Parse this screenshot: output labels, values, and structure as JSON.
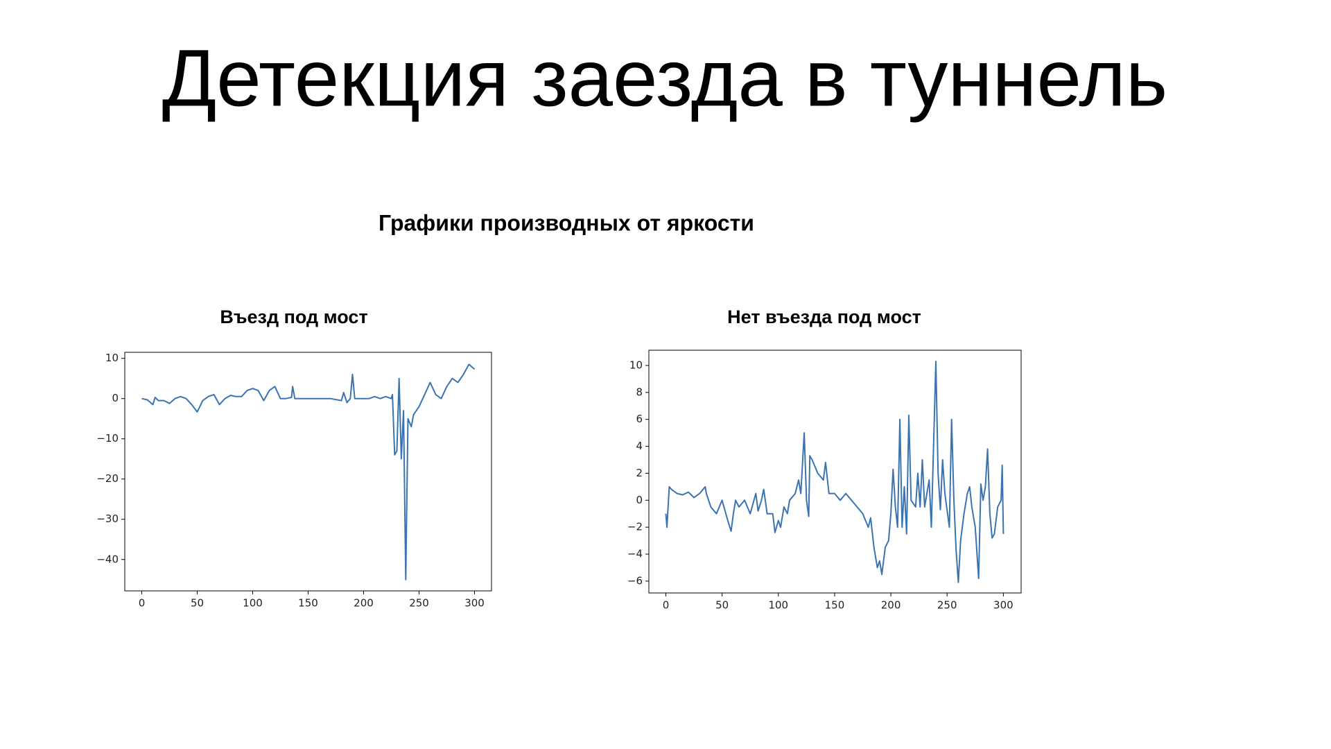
{
  "title": "Детекция заезда в туннель",
  "subtitle": "Графики производных от яркости",
  "chart_data": [
    {
      "type": "line",
      "title": "Въезд под мост",
      "color": "#3b73b0",
      "x": [
        0,
        5,
        10,
        12,
        15,
        20,
        25,
        30,
        35,
        40,
        45,
        50,
        55,
        60,
        65,
        70,
        75,
        80,
        85,
        90,
        95,
        100,
        105,
        110,
        115,
        120,
        125,
        130,
        135,
        136,
        138,
        140,
        150,
        160,
        170,
        180,
        182,
        185,
        188,
        190,
        192,
        200,
        205,
        210,
        215,
        220,
        225,
        226,
        228,
        230,
        232,
        234,
        236,
        238,
        240,
        243,
        245,
        250,
        255,
        260,
        265,
        270,
        275,
        280,
        285,
        290,
        295,
        300
      ],
      "values": [
        0,
        -0.3,
        -1.5,
        0.3,
        -0.5,
        -0.5,
        -1.2,
        0,
        0.5,
        0,
        -1.5,
        -3.3,
        -0.5,
        0.5,
        1,
        -1.5,
        0,
        0.8,
        0.5,
        0.5,
        2,
        2.5,
        2,
        -0.5,
        2,
        3,
        0,
        0,
        0.3,
        3,
        0,
        0,
        0,
        0,
        0,
        -0.5,
        1.5,
        -1,
        0,
        6,
        0,
        0,
        0,
        0.5,
        0,
        0.5,
        0,
        1,
        -14,
        -13,
        5,
        -15,
        -3,
        -45,
        -5,
        -7,
        -4,
        -2,
        1,
        4,
        1,
        0,
        3,
        5,
        4,
        6,
        8.5,
        7.3
      ],
      "xlim": [
        -15.3,
        315.3
      ],
      "ylim": [
        -47.8,
        11.5
      ],
      "xticks": [
        0,
        50,
        100,
        150,
        200,
        250,
        300
      ],
      "yticks": [
        10,
        0,
        {
          "value": -10,
          "label": "−10"
        },
        {
          "value": -20,
          "label": "−20"
        },
        {
          "value": -30,
          "label": "−30"
        },
        {
          "value": -40,
          "label": "−40"
        }
      ]
    },
    {
      "type": "line",
      "title": "Нет въезда под мост",
      "color": "#3b73b0",
      "x": [
        0,
        1,
        3,
        5,
        10,
        15,
        20,
        25,
        30,
        35,
        36,
        40,
        45,
        50,
        55,
        58,
        60,
        62,
        65,
        70,
        75,
        80,
        82,
        85,
        87,
        90,
        95,
        97,
        100,
        102,
        105,
        108,
        110,
        115,
        118,
        120,
        123,
        125,
        127,
        128,
        130,
        135,
        140,
        142,
        145,
        150,
        155,
        160,
        165,
        170,
        175,
        180,
        182,
        185,
        188,
        190,
        192,
        195,
        198,
        200,
        202,
        204,
        206,
        208,
        210,
        212,
        214,
        216,
        218,
        222,
        224,
        226,
        228,
        230,
        234,
        236,
        240,
        242,
        244,
        246,
        248,
        252,
        254,
        256,
        258,
        260,
        262,
        265,
        268,
        270,
        272,
        275,
        278,
        280,
        282,
        284,
        286,
        288,
        290,
        292,
        295,
        298,
        299,
        300
      ],
      "values": [
        -1,
        -2,
        1,
        0.8,
        0.5,
        0.4,
        0.6,
        0.2,
        0.5,
        1,
        0.5,
        -0.5,
        -1,
        0,
        -1.5,
        -2.3,
        -1,
        0,
        -0.5,
        0,
        -1,
        0.5,
        -0.8,
        0,
        0.8,
        -1,
        -1,
        -2.4,
        -1.5,
        -2,
        -0.5,
        -1,
        0,
        0.5,
        1.5,
        0.5,
        5,
        0,
        -1.2,
        3.3,
        3,
        2,
        1.5,
        2.8,
        0.5,
        0.5,
        0,
        0.5,
        0,
        -0.5,
        -1,
        -2,
        -1.3,
        -3.5,
        -5,
        -4.5,
        -5.5,
        -3.5,
        -3,
        -1,
        2.3,
        -0.5,
        -2,
        6,
        -2,
        1,
        -2.5,
        6.3,
        0,
        -0.5,
        2,
        -0.5,
        3,
        -0.5,
        1.5,
        -2,
        10.3,
        2,
        -0.7,
        3,
        0.5,
        -2,
        6,
        0,
        -3.7,
        -6.1,
        -3,
        -1,
        0.5,
        1,
        -0.5,
        -2,
        -5.8,
        1.2,
        0,
        1,
        3.8,
        -1,
        -2.8,
        -2.5,
        -0.5,
        0,
        2.6,
        -2.5
      ],
      "xlim": [
        -15.1,
        315.8
      ],
      "ylim": [
        -6.88,
        11.13
      ],
      "xticks": [
        0,
        50,
        100,
        150,
        200,
        250,
        300
      ],
      "yticks": [
        {
          "value": -6,
          "label": "−6"
        },
        {
          "value": -4,
          "label": "−4"
        },
        {
          "value": -2,
          "label": "−2"
        },
        0,
        2,
        4,
        6,
        8,
        10
      ]
    }
  ]
}
